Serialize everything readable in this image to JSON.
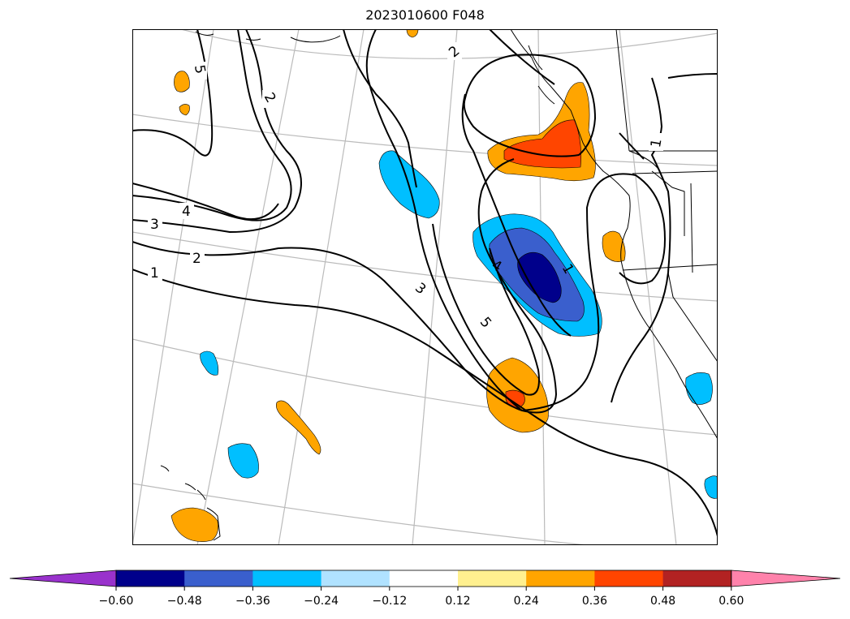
{
  "title": "2023010600 F048",
  "contour_labels": [
    "5",
    "2",
    "2",
    "1",
    "4",
    "3",
    "2",
    "1",
    "3",
    "5",
    "4",
    "1"
  ],
  "colorbar": {
    "ticks": [
      "−0.60",
      "−0.48",
      "−0.36",
      "−0.24",
      "−0.12",
      "0.12",
      "0.24",
      "0.36",
      "0.48",
      "0.60"
    ],
    "extend": "both",
    "colors": [
      "#9932cc",
      "#00008b",
      "#3a5fcd",
      "#00bfff",
      "#b0e2ff",
      "#ffffff",
      "#fff08f",
      "#ffa500",
      "#ff4500",
      "#b22222",
      "#ff82ab"
    ]
  },
  "fill_colors": {
    "orange": "#ffa500",
    "red_orange": "#ff4500",
    "sky_blue": "#00bfff",
    "royal_blue": "#3a5fcd",
    "navy": "#00008b",
    "graticule": "#bbbbbb"
  }
}
